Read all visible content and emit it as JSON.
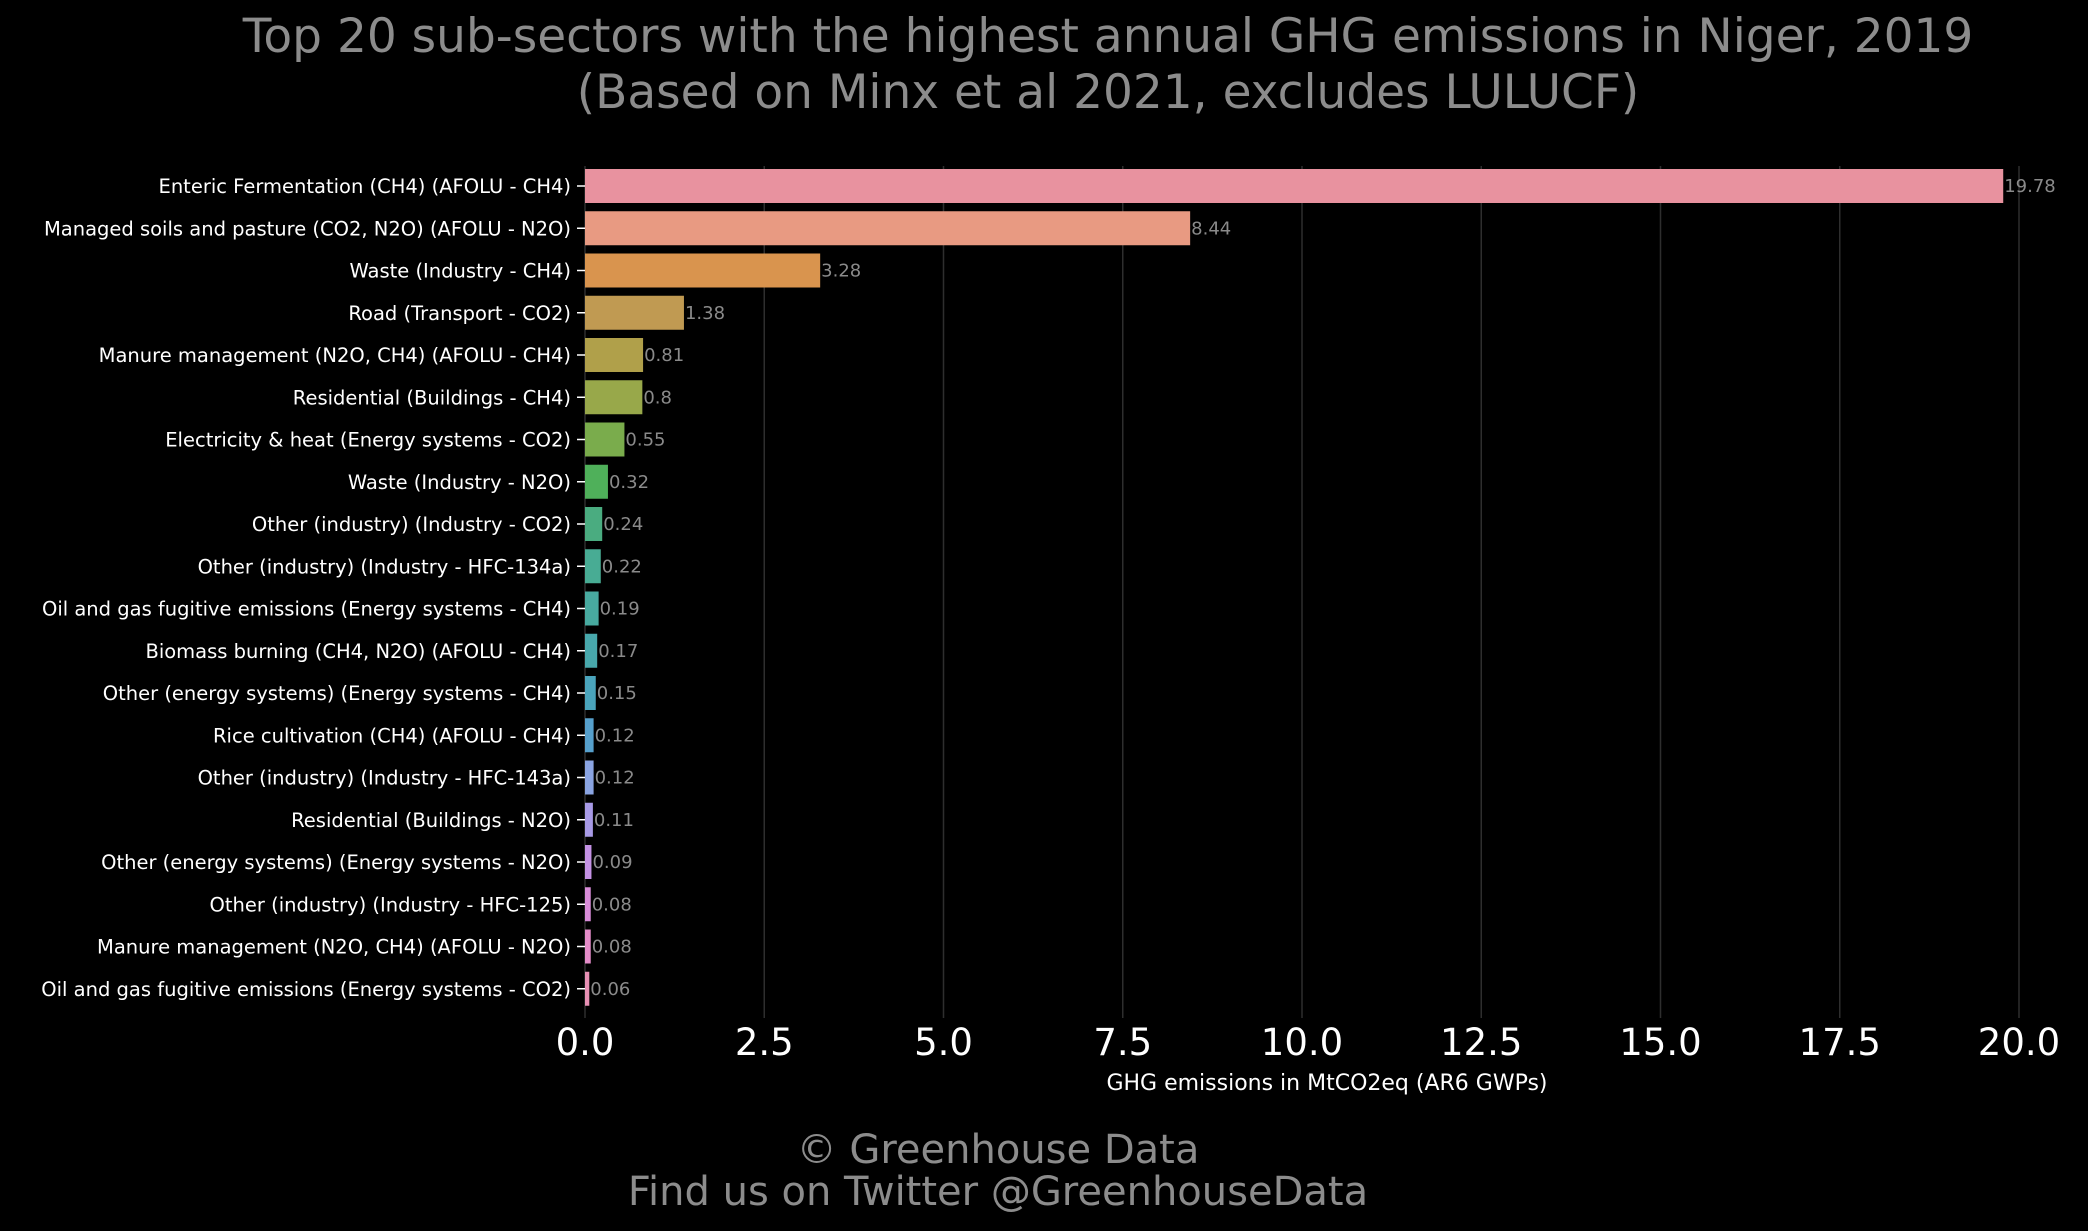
{
  "chart_data": {
    "type": "bar",
    "orientation": "horizontal",
    "title": "Top 20 sub-sectors with the highest annual GHG emissions in Niger, 2019",
    "subtitle": "(Based on Minx et al 2021, excludes LULUCF)",
    "xlabel": "GHG emissions in MtCO2eq (AR6 GWPs)",
    "ylabel": "",
    "xlim": [
      0,
      20.4
    ],
    "xticks": [
      0.0,
      2.5,
      5.0,
      7.5,
      10.0,
      12.5,
      15.0,
      17.5,
      20.0
    ],
    "xtick_labels": [
      "0.0",
      "2.5",
      "5.0",
      "7.5",
      "10.0",
      "12.5",
      "15.0",
      "17.5",
      "20.0"
    ],
    "grid": "vertical",
    "categories": [
      "Enteric Fermentation (CH4) (AFOLU - CH4)",
      "Managed soils and pasture (CO2, N2O) (AFOLU - N2O)",
      "Waste (Industry - CH4)",
      "Road (Transport - CO2)",
      "Manure management (N2O, CH4) (AFOLU - CH4)",
      "Residential (Buildings - CH4)",
      "Electricity & heat (Energy systems - CO2)",
      "Waste (Industry - N2O)",
      "Other (industry) (Industry - CO2)",
      "Other (industry) (Industry - HFC-134a)",
      "Oil and gas fugitive emissions (Energy systems - CH4)",
      "Biomass burning (CH4, N2O) (AFOLU - CH4)",
      "Other (energy systems) (Energy systems - CH4)",
      "Rice cultivation (CH4) (AFOLU - CH4)",
      "Other (industry) (Industry - HFC-143a)",
      "Residential (Buildings - N2O)",
      "Other (energy systems) (Energy systems - N2O)",
      "Other (industry) (Industry - HFC-125)",
      "Manure management (N2O, CH4) (AFOLU - N2O)",
      "Oil and gas fugitive emissions (Energy systems - CO2)"
    ],
    "values": [
      19.78,
      8.44,
      3.28,
      1.38,
      0.81,
      0.8,
      0.55,
      0.32,
      0.24,
      0.22,
      0.19,
      0.17,
      0.15,
      0.12,
      0.12,
      0.11,
      0.09,
      0.08,
      0.08,
      0.06
    ],
    "value_labels": [
      "19.78",
      "8.44",
      "3.28",
      "1.38",
      "0.81",
      "0.8",
      "0.55",
      "0.32",
      "0.24",
      "0.22",
      "0.19",
      "0.17",
      "0.15",
      "0.12",
      "0.12",
      "0.11",
      "0.09",
      "0.08",
      "0.08",
      "0.06"
    ],
    "colors": [
      "#e8929f",
      "#e89a82",
      "#d9944e",
      "#c09a52",
      "#b0a04a",
      "#98a84a",
      "#7aac4c",
      "#4fb05a",
      "#4aac80",
      "#48ac94",
      "#48aaa0",
      "#48a8ac",
      "#4aa4bc",
      "#56a0cc",
      "#8aa4e2",
      "#a89ae6",
      "#c492e4",
      "#d88cd8",
      "#e48cc8",
      "#e890b4"
    ]
  },
  "footer": {
    "line1": "© Greenhouse Data",
    "line2": "Find us on Twitter @GreenhouseData"
  }
}
